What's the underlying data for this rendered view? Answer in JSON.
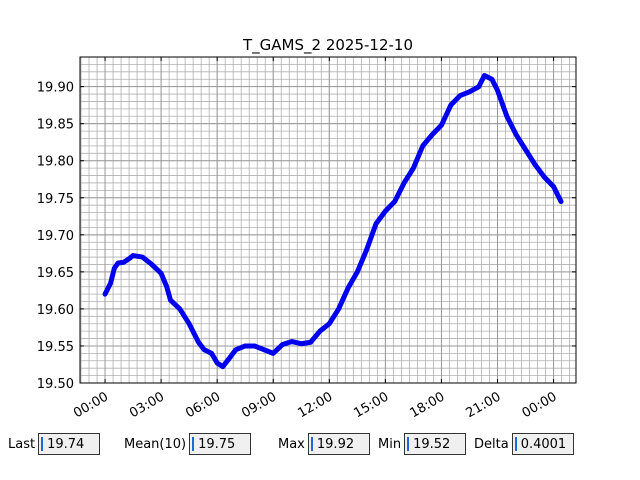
{
  "chart_data": {
    "type": "line",
    "title": "T_GAMS_2 2025-12-10",
    "x": [
      0.0,
      0.3,
      0.5,
      0.7,
      1.0,
      1.3,
      1.5,
      2.0,
      2.5,
      3.0,
      3.3,
      3.5,
      4.0,
      4.5,
      5.0,
      5.3,
      5.7,
      6.0,
      6.3,
      6.7,
      7.0,
      7.5,
      8.0,
      8.5,
      9.0,
      9.5,
      10.0,
      10.5,
      11.0,
      11.5,
      12.0,
      12.5,
      13.0,
      13.5,
      14.0,
      14.5,
      15.0,
      15.5,
      16.0,
      16.5,
      17.0,
      17.5,
      18.0,
      18.5,
      19.0,
      19.5,
      20.0,
      20.3,
      20.7,
      21.0,
      21.5,
      22.0,
      22.5,
      23.0,
      23.5,
      24.0,
      24.2,
      24.4
    ],
    "series": [
      {
        "name": "T_GAMS_2",
        "color": "#0000ee",
        "values": [
          19.62,
          19.635,
          19.655,
          19.662,
          19.663,
          19.668,
          19.672,
          19.67,
          19.66,
          19.648,
          19.63,
          19.612,
          19.6,
          19.58,
          19.555,
          19.545,
          19.54,
          19.527,
          19.522,
          19.535,
          19.545,
          19.55,
          19.55,
          19.545,
          19.54,
          19.552,
          19.556,
          19.553,
          19.555,
          19.57,
          19.58,
          19.6,
          19.628,
          19.65,
          19.68,
          19.715,
          19.732,
          19.745,
          19.77,
          19.79,
          19.82,
          19.835,
          19.848,
          19.875,
          19.888,
          19.893,
          19.9,
          19.915,
          19.91,
          19.895,
          19.86,
          19.835,
          19.815,
          19.795,
          19.778,
          19.765,
          19.755,
          19.745
        ]
      }
    ],
    "xlim": [
      -1.34,
      25.2
    ],
    "xticks": [
      {
        "value": 0,
        "label": "00:00"
      },
      {
        "value": 3,
        "label": "03:00"
      },
      {
        "value": 6,
        "label": "06:00"
      },
      {
        "value": 9,
        "label": "09:00"
      },
      {
        "value": 12,
        "label": "12:00"
      },
      {
        "value": 15,
        "label": "15:00"
      },
      {
        "value": 18,
        "label": "18:00"
      },
      {
        "value": 21,
        "label": "21:00"
      },
      {
        "value": 24,
        "label": "00:00"
      }
    ],
    "ylim": [
      19.5,
      19.94
    ],
    "yticks": [
      {
        "value": 19.5,
        "label": "19.50"
      },
      {
        "value": 19.55,
        "label": "19.55"
      },
      {
        "value": 19.6,
        "label": "19.60"
      },
      {
        "value": 19.65,
        "label": "19.65"
      },
      {
        "value": 19.7,
        "label": "19.70"
      },
      {
        "value": 19.75,
        "label": "19.75"
      },
      {
        "value": 19.8,
        "label": "19.80"
      },
      {
        "value": 19.85,
        "label": "19.85"
      },
      {
        "value": 19.9,
        "label": "19.90"
      }
    ],
    "grid": true
  },
  "stats": [
    {
      "label": "Last",
      "value": "19.74"
    },
    {
      "label": "Mean(10)",
      "value": "19.75"
    },
    {
      "label": "Max",
      "value": "19.92"
    },
    {
      "label": "Min",
      "value": "19.52"
    },
    {
      "label": "Delta",
      "value": "0.4001"
    }
  ]
}
